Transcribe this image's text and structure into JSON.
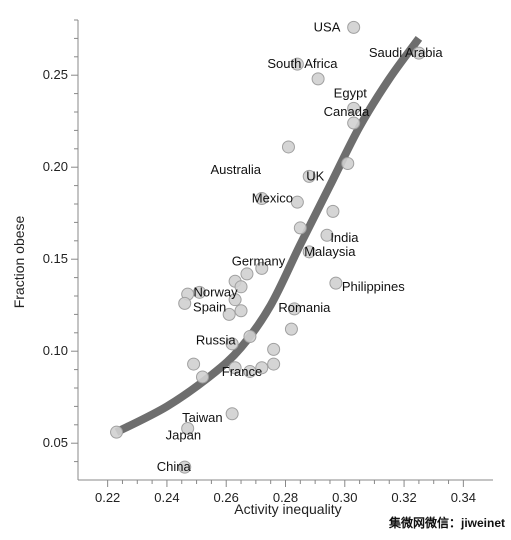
{
  "chart_data": {
    "type": "scatter",
    "xlabel": "Activity inequality",
    "ylabel": "Fraction obese",
    "xlim": [
      0.21,
      0.35
    ],
    "ylim": [
      0.03,
      0.28
    ],
    "x_ticks": [
      "0.22",
      "0.24",
      "0.26",
      "0.28",
      "0.30",
      "0.32",
      "0.34"
    ],
    "y_ticks": [
      "0.05",
      "0.10",
      "0.15",
      "0.20",
      "0.25"
    ],
    "points": [
      {
        "x": 0.303,
        "y": 0.276,
        "label": "USA"
      },
      {
        "x": 0.325,
        "y": 0.262,
        "label": "Saudi Arabia"
      },
      {
        "x": 0.284,
        "y": 0.256,
        "label": "South Africa"
      },
      {
        "x": 0.291,
        "y": 0.248,
        "label": ""
      },
      {
        "x": 0.303,
        "y": 0.232,
        "label": "Egypt"
      },
      {
        "x": 0.303,
        "y": 0.224,
        "label": "Canada"
      },
      {
        "x": 0.281,
        "y": 0.211,
        "label": "Australia"
      },
      {
        "x": 0.301,
        "y": 0.202,
        "label": ""
      },
      {
        "x": 0.288,
        "y": 0.195,
        "label": "UK"
      },
      {
        "x": 0.272,
        "y": 0.183,
        "label": "Mexico"
      },
      {
        "x": 0.284,
        "y": 0.181,
        "label": ""
      },
      {
        "x": 0.296,
        "y": 0.176,
        "label": ""
      },
      {
        "x": 0.285,
        "y": 0.167,
        "label": "India"
      },
      {
        "x": 0.294,
        "y": 0.163,
        "label": ""
      },
      {
        "x": 0.288,
        "y": 0.154,
        "label": "Malaysia"
      },
      {
        "x": 0.272,
        "y": 0.145,
        "label": "Germany"
      },
      {
        "x": 0.267,
        "y": 0.142,
        "label": ""
      },
      {
        "x": 0.263,
        "y": 0.138,
        "label": ""
      },
      {
        "x": 0.265,
        "y": 0.135,
        "label": ""
      },
      {
        "x": 0.297,
        "y": 0.137,
        "label": "Philippines"
      },
      {
        "x": 0.251,
        "y": 0.132,
        "label": "Norway"
      },
      {
        "x": 0.247,
        "y": 0.131,
        "label": ""
      },
      {
        "x": 0.246,
        "y": 0.126,
        "label": ""
      },
      {
        "x": 0.263,
        "y": 0.128,
        "label": ""
      },
      {
        "x": 0.265,
        "y": 0.122,
        "label": "Spain"
      },
      {
        "x": 0.261,
        "y": 0.12,
        "label": ""
      },
      {
        "x": 0.283,
        "y": 0.123,
        "label": "Romania"
      },
      {
        "x": 0.282,
        "y": 0.112,
        "label": ""
      },
      {
        "x": 0.268,
        "y": 0.108,
        "label": "Russia"
      },
      {
        "x": 0.262,
        "y": 0.104,
        "label": ""
      },
      {
        "x": 0.276,
        "y": 0.101,
        "label": ""
      },
      {
        "x": 0.249,
        "y": 0.093,
        "label": ""
      },
      {
        "x": 0.263,
        "y": 0.091,
        "label": ""
      },
      {
        "x": 0.268,
        "y": 0.089,
        "label": ""
      },
      {
        "x": 0.272,
        "y": 0.091,
        "label": "France"
      },
      {
        "x": 0.276,
        "y": 0.093,
        "label": ""
      },
      {
        "x": 0.252,
        "y": 0.086,
        "label": ""
      },
      {
        "x": 0.262,
        "y": 0.066,
        "label": "Taiwan"
      },
      {
        "x": 0.247,
        "y": 0.058,
        "label": "Japan"
      },
      {
        "x": 0.223,
        "y": 0.056,
        "label": ""
      },
      {
        "x": 0.246,
        "y": 0.037,
        "label": "China"
      }
    ],
    "trend_line": [
      {
        "x": 0.223,
        "y": 0.056
      },
      {
        "x": 0.24,
        "y": 0.07
      },
      {
        "x": 0.255,
        "y": 0.087
      },
      {
        "x": 0.265,
        "y": 0.102
      },
      {
        "x": 0.275,
        "y": 0.125
      },
      {
        "x": 0.285,
        "y": 0.158
      },
      {
        "x": 0.295,
        "y": 0.19
      },
      {
        "x": 0.305,
        "y": 0.222
      },
      {
        "x": 0.315,
        "y": 0.248
      },
      {
        "x": 0.325,
        "y": 0.27
      }
    ],
    "grid": false,
    "colors": {
      "marker_fill": "#d0d0d0",
      "marker_stroke": "#a0a0a0",
      "trend": "#6e6e6e",
      "axis": "#888888"
    }
  },
  "watermark": "集微网微信：jiweinet"
}
